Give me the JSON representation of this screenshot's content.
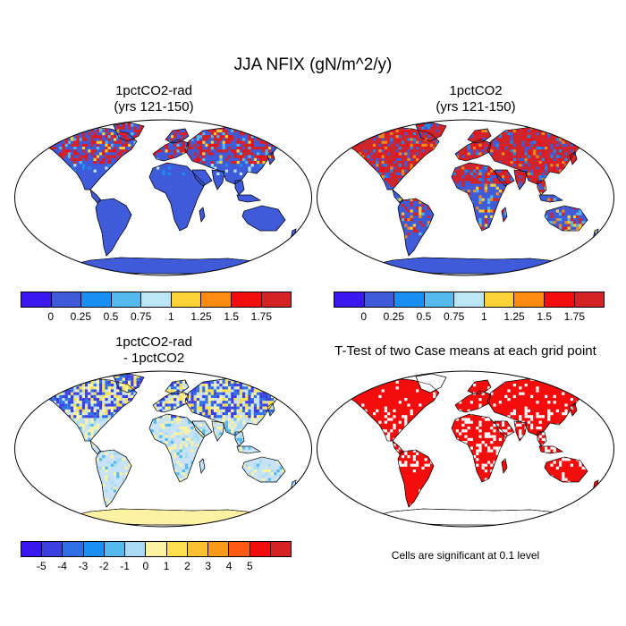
{
  "title": "JJA NFIX (gN/m^2/y)",
  "panels": [
    {
      "title_lines": [
        "1pctCO2-rad",
        "(yrs 121-150)"
      ],
      "style": "rad"
    },
    {
      "title_lines": [
        "1pctCO2",
        "(yrs 121-150)"
      ],
      "style": "co2"
    },
    {
      "title_lines": [
        "1pctCO2-rad",
        "- 1pctCO2"
      ],
      "style": "diff"
    },
    {
      "title_lines": [
        "T-Test of two Case means at each grid point"
      ],
      "style": "ttest"
    }
  ],
  "colorbars": [
    {
      "name": "abs-colorbar-left",
      "colors": [
        "#3a16f0",
        "#3f5bd9",
        "#1a8ef2",
        "#53b9ef",
        "#bde6f4",
        "#fcd337",
        "#fd8b11",
        "#f50d0d",
        "#d62222"
      ],
      "labels": [
        "0",
        "0.25",
        "0.5",
        "0.75",
        "1",
        "1.25",
        "1.5",
        "1.75"
      ]
    },
    {
      "name": "abs-colorbar-right",
      "colors": [
        "#3a16f0",
        "#3f5bd9",
        "#1a8ef2",
        "#53b9ef",
        "#bde6f4",
        "#fcd337",
        "#fd8b11",
        "#f50d0d",
        "#d62222"
      ],
      "labels": [
        "0",
        "0.25",
        "0.5",
        "0.75",
        "1",
        "1.25",
        "1.5",
        "1.75"
      ]
    },
    {
      "name": "diff-colorbar",
      "colors": [
        "#3a16f0",
        "#3b3fe0",
        "#2f6fe6",
        "#1a8ef2",
        "#53b9ef",
        "#a9dcf4",
        "#fdf2a4",
        "#fde050",
        "#fcc030",
        "#fd9a18",
        "#fc5a12",
        "#f50d0d",
        "#d62222"
      ],
      "labels": [
        "-5",
        "-4",
        "-3",
        "-2",
        "-1",
        "0",
        "1",
        "2",
        "3",
        "4",
        "5"
      ]
    }
  ],
  "significance_note": "Cells are significant at 0.1 level"
}
